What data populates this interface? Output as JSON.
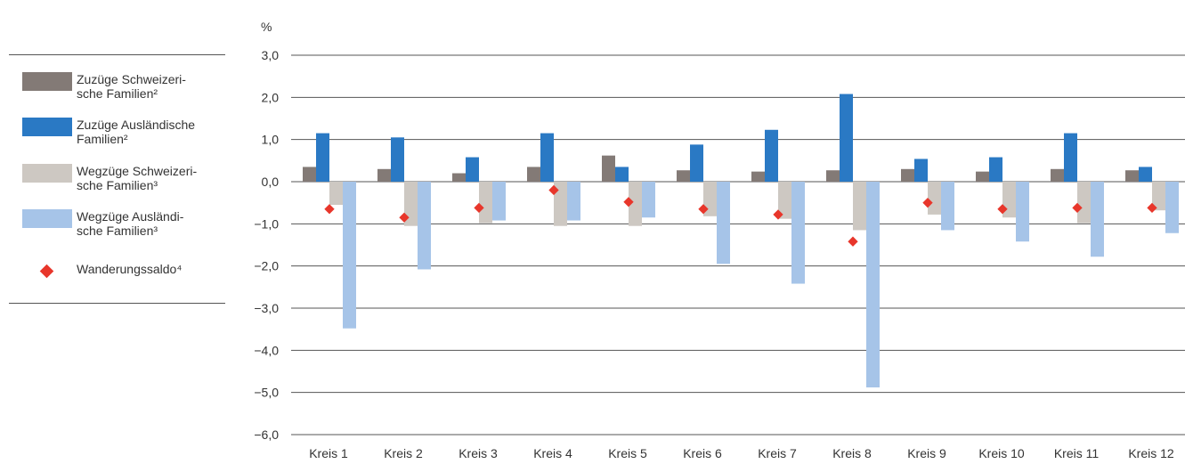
{
  "chart_data": {
    "type": "bar",
    "unit": "%",
    "categories": [
      "Kreis 1",
      "Kreis 2",
      "Kreis 3",
      "Kreis 4",
      "Kreis 5",
      "Kreis 6",
      "Kreis 7",
      "Kreis 8",
      "Kreis 9",
      "Kreis 10",
      "Kreis 11",
      "Kreis 12"
    ],
    "ylim": [
      -6,
      3
    ],
    "yticks": [
      "3,0",
      "2,0",
      "1,0",
      "0,0",
      "−1,0",
      "−2,0",
      "−3,0",
      "−4,0",
      "−5,0",
      "−6,0"
    ],
    "grid": "horizontal",
    "legend_position": "left",
    "series": [
      {
        "name": "Zuzüge Schweizeri-\nsche Familien²",
        "kind": "bar",
        "color": "#837a76",
        "values": [
          0.35,
          0.3,
          0.2,
          0.35,
          0.62,
          0.27,
          0.24,
          0.27,
          0.3,
          0.24,
          0.3,
          0.27
        ]
      },
      {
        "name": "Zuzüge Ausländische\nFamilien²",
        "kind": "bar",
        "color": "#2a79c4",
        "values": [
          1.15,
          1.05,
          0.58,
          1.15,
          0.35,
          0.88,
          1.23,
          2.08,
          0.54,
          0.58,
          1.15,
          0.35
        ]
      },
      {
        "name": "Wegzüge Schweizeri-\nsche Familien³",
        "kind": "bar",
        "color": "#cdc8c2",
        "values": [
          -0.55,
          -1.05,
          -0.98,
          -1.05,
          -1.05,
          -0.82,
          -0.88,
          -1.15,
          -0.78,
          -0.85,
          -0.98,
          -0.68
        ]
      },
      {
        "name": "Wegzüge Ausländi-\nsche Familien³",
        "kind": "bar",
        "color": "#a6c4e8",
        "values": [
          -3.48,
          -2.08,
          -0.92,
          -0.92,
          -0.85,
          -1.95,
          -2.42,
          -4.88,
          -1.15,
          -1.42,
          -1.78,
          -1.22
        ]
      },
      {
        "name": "Wanderungssaldo⁴",
        "kind": "marker",
        "color": "#e8362b",
        "values": [
          -0.65,
          -0.85,
          -0.62,
          -0.2,
          -0.48,
          -0.65,
          -0.78,
          -1.42,
          -0.5,
          -0.65,
          -0.62,
          -0.62
        ]
      }
    ]
  }
}
